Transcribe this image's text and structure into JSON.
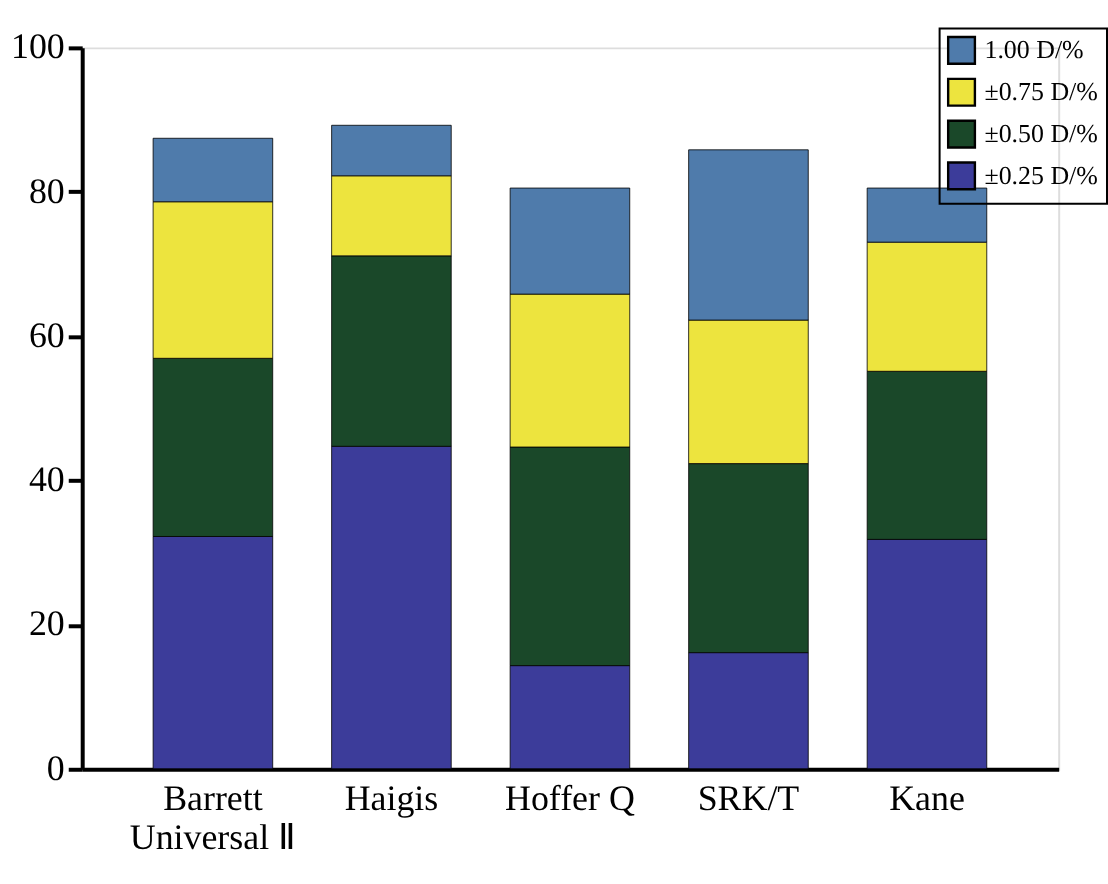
{
  "chart_data": {
    "type": "bar",
    "stacked": true,
    "categories": [
      "Barrett Universal Ⅱ",
      "Haigis",
      "Hoffer Q",
      "SRK/T",
      "Kane"
    ],
    "series": [
      {
        "name": "±0.25 D/%",
        "color": "#3c3c9a",
        "values": [
          32.2,
          44.7,
          14.3,
          16.1,
          31.8
        ]
      },
      {
        "name": "±0.50 D/%",
        "color": "#1a4829",
        "values": [
          24.7,
          26.4,
          30.3,
          26.2,
          23.3
        ]
      },
      {
        "name": "±0.75 D/%",
        "color": "#ede43e",
        "values": [
          21.7,
          11.1,
          21.2,
          19.9,
          17.9
        ]
      },
      {
        "name": "1.00 D/%",
        "color": "#4f7bab",
        "values": [
          8.8,
          7.0,
          14.7,
          23.6,
          7.5
        ]
      }
    ],
    "ylim": [
      0,
      100
    ],
    "yticks": [
      0,
      20,
      40,
      60,
      80,
      100
    ],
    "grid": false,
    "legend": "top right"
  }
}
